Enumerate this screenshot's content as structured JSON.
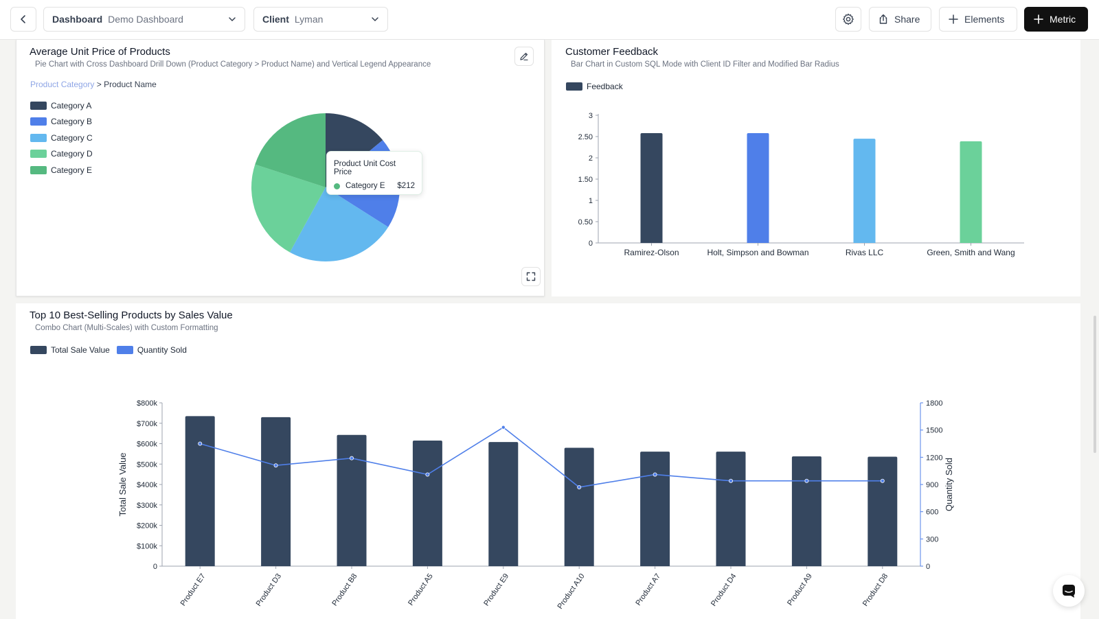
{
  "topbar": {
    "dashboard_label": "Dashboard",
    "dashboard_value": "Demo Dashboard",
    "client_label": "Client",
    "client_value": "Lyman",
    "share_label": "Share",
    "elements_label": "Elements",
    "metric_label": "Metric"
  },
  "panel_pie": {
    "title": "Average Unit Price of Products",
    "subtitle": "Pie Chart with Cross Dashboard Drill Down (Product Category > Product Name) and Vertical Legend Appearance",
    "breadcrumb": {
      "link": "Product Category",
      "separator": ">",
      "current": "Product Name"
    },
    "legend": [
      {
        "label": "Category A",
        "color": "#35475f"
      },
      {
        "label": "Category B",
        "color": "#4f7fe9"
      },
      {
        "label": "Category C",
        "color": "#63b8ef"
      },
      {
        "label": "Category D",
        "color": "#6bd19a"
      },
      {
        "label": "Category E",
        "color": "#55b980"
      }
    ],
    "tooltip": {
      "title": "Product Unit Cost Price",
      "category": "Category E",
      "value": "$212",
      "color": "#55b980"
    }
  },
  "panel_bar": {
    "title": "Customer Feedback",
    "subtitle": "Bar Chart in Custom SQL Mode with Client ID Filter and Modified Bar Radius",
    "legend_label": "Feedback",
    "legend_color": "#35475f"
  },
  "panel_combo": {
    "title": "Top 10 Best-Selling Products by Sales Value",
    "subtitle": "Combo Chart (Multi-Scales) with Custom Formatting",
    "legend": [
      {
        "label": "Total Sale Value",
        "color": "#35475f"
      },
      {
        "label": "Quantity Sold",
        "color": "#4f7fe9"
      }
    ]
  },
  "chart_data": [
    {
      "type": "pie",
      "title": "Average Unit Price of Products",
      "categories": [
        "Category A",
        "Category B",
        "Category C",
        "Category D",
        "Category E"
      ],
      "values": [
        14,
        20,
        24,
        22,
        20
      ],
      "colors": [
        "#35475f",
        "#4f7fe9",
        "#63b8ef",
        "#6bd19a",
        "#55b980"
      ]
    },
    {
      "type": "bar",
      "title": "Customer Feedback",
      "categories": [
        "Ramirez-Olson",
        "Holt, Simpson and Bowman",
        "Rivas LLC",
        "Green, Smith and Wang"
      ],
      "values": [
        2.58,
        2.58,
        2.45,
        2.39
      ],
      "colors": [
        "#35475f",
        "#4f7fe9",
        "#63b8ef",
        "#6bd19a"
      ],
      "ylim": [
        0,
        3
      ],
      "yticks": [
        "0",
        "0.50",
        "1",
        "1.50",
        "2",
        "2.50",
        "3"
      ],
      "legend": "Feedback"
    },
    {
      "type": "bar",
      "title": "Top 10 Best-Selling Products by Sales Value",
      "categories": [
        "Product E7",
        "Product D3",
        "Product B8",
        "Product A5",
        "Product E9",
        "Product A10",
        "Product A7",
        "Product D4",
        "Product A9",
        "Product D8"
      ],
      "series": [
        {
          "name": "Total Sale Value",
          "type": "bar",
          "axis": "left",
          "values": [
            735000,
            730000,
            643000,
            615000,
            608000,
            580000,
            561000,
            561000,
            538000,
            536000
          ],
          "color": "#35475f"
        },
        {
          "name": "Quantity Sold",
          "type": "line",
          "axis": "right",
          "values": [
            1350,
            1110,
            1190,
            1010,
            1530,
            870,
            1010,
            940,
            940,
            940
          ],
          "color": "#4f7fe9"
        }
      ],
      "ylabel": "Total Sale Value",
      "ylabel_right": "Quantity Sold",
      "ylim": [
        0,
        800000
      ],
      "ylim_right": [
        0,
        1800
      ],
      "yticks": [
        "0",
        "$100k",
        "$200k",
        "$300k",
        "$400k",
        "$500k",
        "$600k",
        "$700k",
        "$800k"
      ],
      "yticks_right": [
        "0",
        "300",
        "600",
        "900",
        "1200",
        "1500",
        "1800"
      ]
    }
  ]
}
